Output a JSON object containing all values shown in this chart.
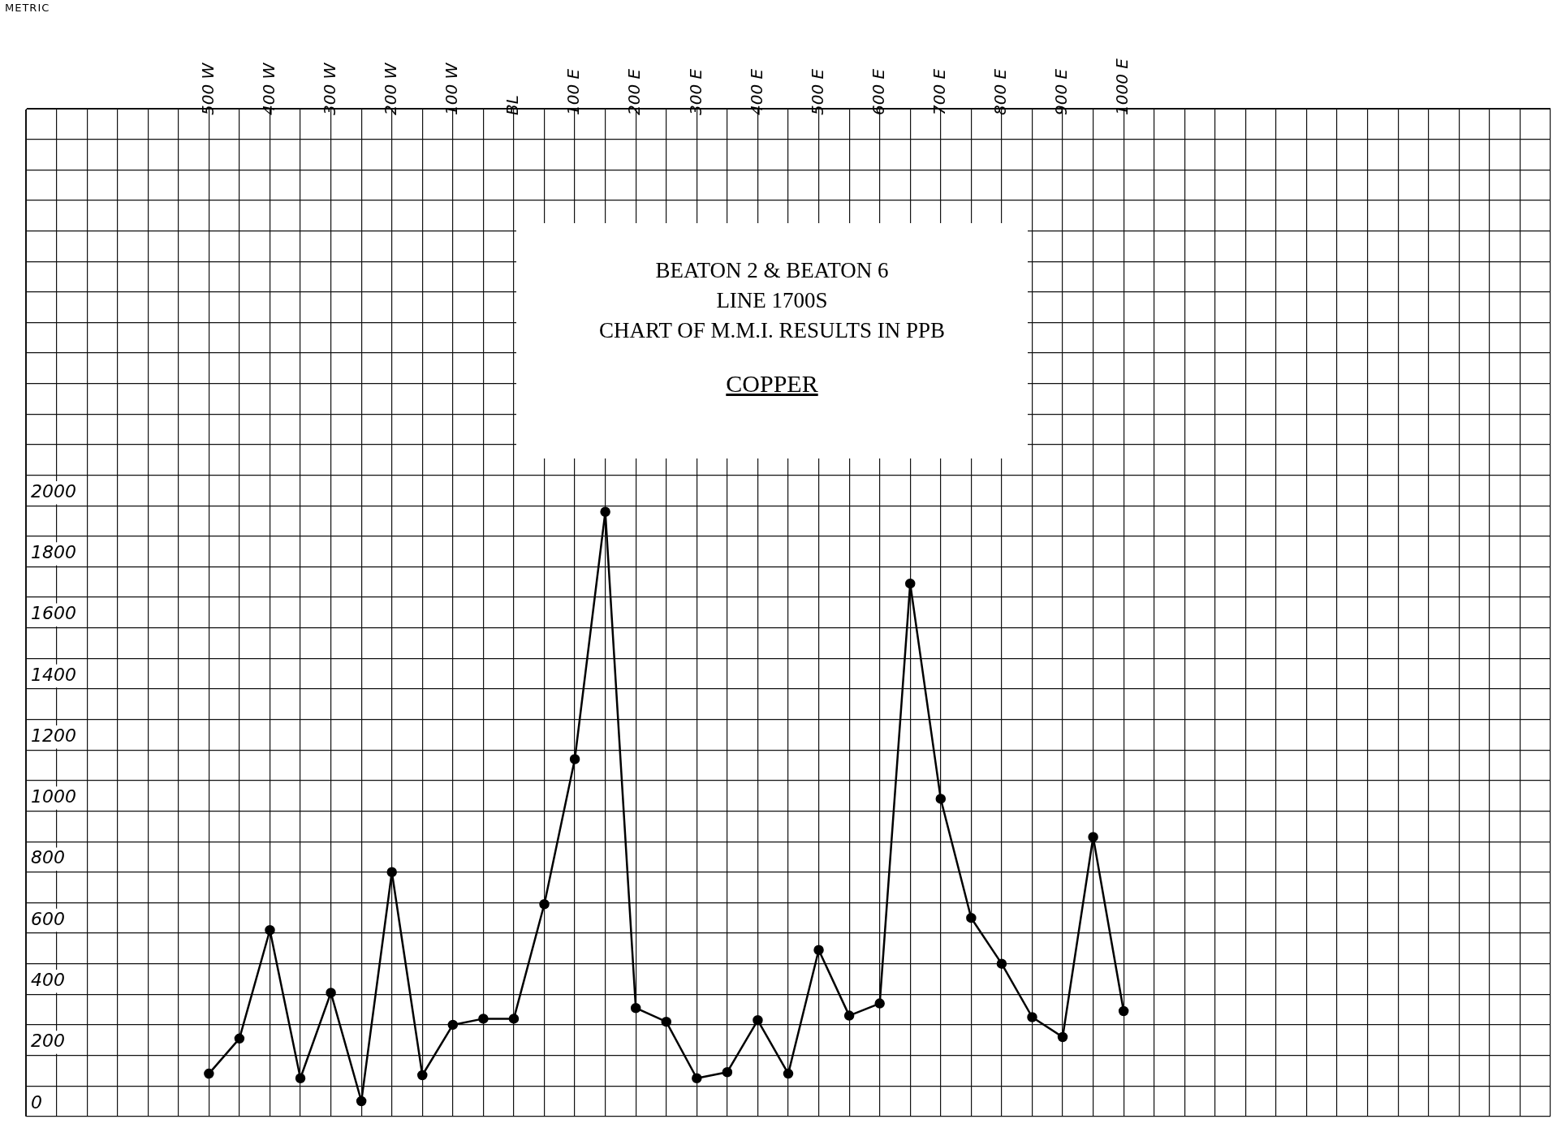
{
  "chart_data": {
    "type": "line",
    "title": "BEATON 2 & BEATON 6",
    "subtitle": "LINE 1700S",
    "annotations": [
      "METRIC",
      "CHART OF M.M.I.  RESULTS IN PPB",
      "COPPER"
    ],
    "categories": [
      null,
      null,
      null,
      null,
      null,
      null,
      "500 W",
      null,
      "400 W",
      null,
      "300 W",
      null,
      "200 W",
      null,
      "100 W",
      null,
      "BL",
      null,
      "100 E",
      null,
      "200 E",
      null,
      "300 E",
      null,
      "400 E",
      null,
      "500 E",
      null,
      "600 E",
      null,
      "700 E",
      null,
      "800 E",
      null,
      "900 E",
      null,
      "1000 E",
      null,
      null,
      null,
      null,
      null,
      null,
      null,
      null,
      null,
      null,
      null,
      null,
      null,
      null
    ],
    "series": [
      {
        "color": "#000000",
        "values": [
          null,
          null,
          null,
          null,
          null,
          null,
          140,
          255,
          610,
          125,
          405,
          50,
          800,
          135,
          300,
          320,
          320,
          695,
          1170,
          1980,
          355,
          310,
          125,
          145,
          315,
          140,
          545,
          330,
          370,
          1745,
          1040,
          650,
          500,
          325,
          260,
          915,
          345,
          null,
          null,
          null,
          null,
          null,
          null,
          null,
          null,
          null,
          null,
          null,
          null,
          null,
          null
        ]
      }
    ],
    "ylim": [
      0,
      3300
    ],
    "yticks": [
      0,
      {
        "value": 100,
        "label": null
      },
      200,
      {
        "value": 300,
        "label": null
      },
      400,
      {
        "value": 500,
        "label": null
      },
      600,
      {
        "value": 700,
        "label": null
      },
      800,
      {
        "value": 900,
        "label": null
      },
      1000,
      {
        "value": 1100,
        "label": null
      },
      1200,
      {
        "value": 1300,
        "label": null
      },
      1400,
      {
        "value": 1500,
        "label": null
      },
      1600,
      {
        "value": 1700,
        "label": null
      },
      1800,
      {
        "value": 1900,
        "label": null
      },
      2000,
      {
        "value": 2100,
        "label": null
      },
      {
        "value": 2200,
        "label": null
      },
      {
        "value": 2300,
        "label": null
      },
      {
        "value": 2400,
        "label": null
      },
      {
        "value": 2500,
        "label": null
      },
      {
        "value": 2600,
        "label": null
      },
      {
        "value": 2700,
        "label": null
      },
      {
        "value": 2800,
        "label": null
      },
      {
        "value": 2900,
        "label": null
      },
      {
        "value": 3000,
        "label": null
      },
      {
        "value": 3100,
        "label": null
      },
      {
        "value": 3200,
        "label": null
      },
      {
        "value": 3300,
        "label": null
      }
    ],
    "grid": true,
    "marker": "circle",
    "line_style": "solid"
  }
}
